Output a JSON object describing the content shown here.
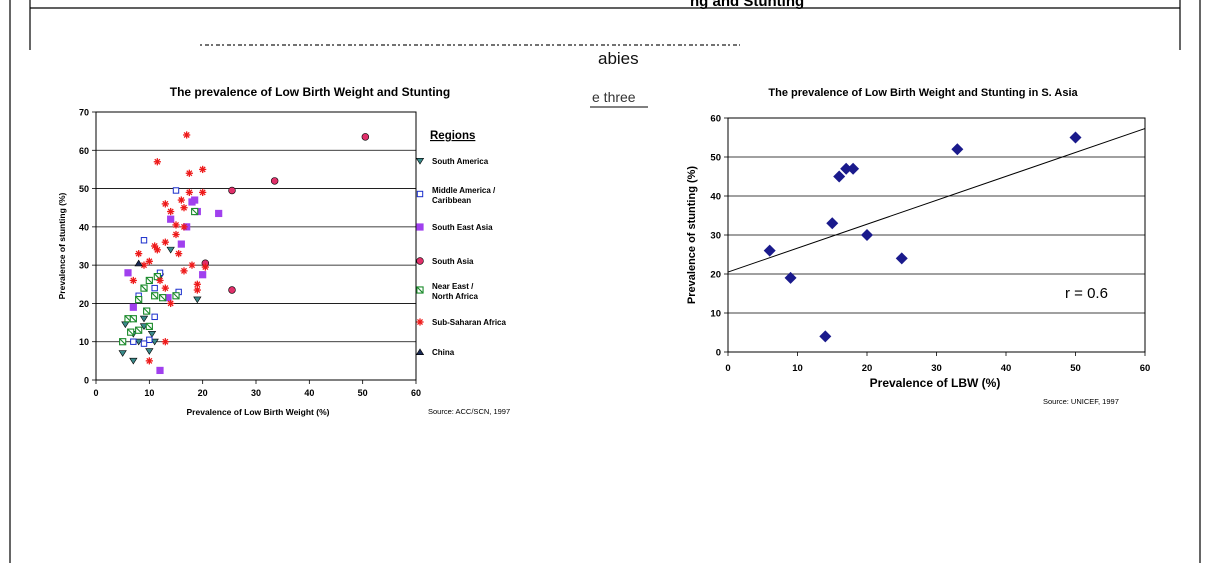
{
  "slide": {
    "header_fragment": "ng  and Stunting",
    "bullet_fragment": "abies",
    "bullet_fragment_2": "e three"
  },
  "left_chart": {
    "chart_data": {
      "type": "scatter",
      "title": "The prevalence of Low Birth Weight and Stunting",
      "xlabel": "Prevalence of Low Birth Weight (%)",
      "ylabel": "Prevalence of stunting (%)",
      "xlim": [
        0,
        60
      ],
      "ylim": [
        0,
        70
      ],
      "xticks": [
        0,
        10,
        20,
        30,
        40,
        50,
        60
      ],
      "yticks": [
        0,
        10,
        20,
        30,
        40,
        50,
        60,
        70
      ],
      "grid": "horizontal",
      "legend_title": "Regions",
      "legend_position": "right",
      "source": "Source: ACC/SCN, 1997",
      "series": [
        {
          "name": "South America",
          "marker": "triangle-down",
          "color": "#3a8a8a",
          "points": [
            [
              5.5,
              14.5
            ],
            [
              5,
              7
            ],
            [
              7,
              5
            ],
            [
              8,
              10
            ],
            [
              9,
              14
            ],
            [
              10,
              7.5
            ],
            [
              10.5,
              12
            ],
            [
              11,
              10
            ],
            [
              12,
              27
            ],
            [
              14,
              34
            ],
            [
              19,
              21
            ],
            [
              9,
              16
            ],
            [
              7,
              12
            ]
          ]
        },
        {
          "name": "Middle America / Caribbean",
          "marker": "square-open",
          "color": "#1a2ecc",
          "points": [
            [
              9,
              36.5
            ],
            [
              15,
              49.5
            ],
            [
              15.5,
              23
            ],
            [
              11,
              16.5
            ],
            [
              8,
              22
            ],
            [
              10,
              10.5
            ],
            [
              7,
              10
            ],
            [
              9,
              9.5
            ],
            [
              11,
              24
            ],
            [
              12,
              28
            ]
          ]
        },
        {
          "name": "South East Asia",
          "marker": "square",
          "color": "#a040ee",
          "points": [
            [
              6,
              28
            ],
            [
              7,
              19
            ],
            [
              12,
              2.5
            ],
            [
              14,
              42
            ],
            [
              16,
              35.5
            ],
            [
              17,
              40
            ],
            [
              18,
              46.5
            ],
            [
              18.5,
              47
            ],
            [
              19,
              44
            ],
            [
              20,
              27.5
            ],
            [
              23,
              43.5
            ],
            [
              13.5,
              21.5
            ]
          ]
        },
        {
          "name": "South Asia",
          "marker": "circle",
          "color": "#e0306a",
          "points": [
            [
              20.5,
              30.5
            ],
            [
              25.5,
              49.5
            ],
            [
              25.5,
              23.5
            ],
            [
              33.5,
              52
            ],
            [
              50.5,
              63.5
            ]
          ]
        },
        {
          "name": "Near East / North Africa",
          "marker": "square-hatched",
          "color": "#1a8a2a",
          "points": [
            [
              5,
              10
            ],
            [
              6,
              16
            ],
            [
              7,
              16
            ],
            [
              8,
              21
            ],
            [
              9,
              24
            ],
            [
              10,
              26
            ],
            [
              11,
              22
            ],
            [
              11.5,
              27
            ],
            [
              9.5,
              18
            ],
            [
              8,
              13
            ],
            [
              15,
              22
            ],
            [
              18.5,
              44
            ],
            [
              6.5,
              12.5
            ],
            [
              10,
              14
            ],
            [
              12.5,
              21.5
            ]
          ]
        },
        {
          "name": "Sub-Saharan Africa",
          "marker": "asterisk",
          "color": "#ee1a1a",
          "points": [
            [
              7,
              26
            ],
            [
              8,
              33
            ],
            [
              9,
              30
            ],
            [
              10,
              31
            ],
            [
              11,
              35
            ],
            [
              11.5,
              34
            ],
            [
              12,
              26
            ],
            [
              13,
              36
            ],
            [
              13,
              46
            ],
            [
              14,
              44
            ],
            [
              15,
              38
            ],
            [
              15.5,
              33
            ],
            [
              16,
              47
            ],
            [
              16.5,
              40
            ],
            [
              16.5,
              45
            ],
            [
              17,
              64
            ],
            [
              17.5,
              54
            ],
            [
              17.5,
              49
            ],
            [
              18,
              30
            ],
            [
              16.5,
              28.5
            ],
            [
              20,
              55
            ],
            [
              20,
              49
            ],
            [
              20.5,
              29.5
            ],
            [
              19,
              23.5
            ],
            [
              19,
              25
            ],
            [
              11.5,
              57
            ],
            [
              10,
              5
            ],
            [
              13,
              10
            ],
            [
              14,
              20
            ],
            [
              15,
              40.5
            ],
            [
              13,
              24
            ]
          ]
        },
        {
          "name": "China",
          "marker": "triangle-up",
          "color": "#1a2a55",
          "points": [
            [
              8,
              30.5
            ]
          ]
        }
      ]
    }
  },
  "right_chart": {
    "chart_data": {
      "type": "scatter",
      "title": "The prevalence of Low Birth Weight and Stunting in S. Asia",
      "xlabel": "Prevalence of LBW (%)",
      "ylabel": "Prevalence of stunting (%)",
      "xlim": [
        0,
        60
      ],
      "ylim": [
        0,
        60
      ],
      "xticks": [
        0,
        10,
        20,
        30,
        40,
        50,
        60
      ],
      "yticks": [
        0,
        10,
        20,
        30,
        40,
        50,
        60
      ],
      "grid": "horizontal",
      "annotation": "r = 0.6",
      "source": "Source: UNICEF, 1997",
      "marker_color": "#1a1a8c",
      "trendline": {
        "x": [
          0,
          60
        ],
        "y": [
          20.5,
          57.3
        ]
      },
      "points": [
        [
          6,
          26
        ],
        [
          9,
          19
        ],
        [
          14,
          4
        ],
        [
          15,
          33
        ],
        [
          16,
          45
        ],
        [
          17,
          47
        ],
        [
          18,
          47
        ],
        [
          20,
          30
        ],
        [
          25,
          24
        ],
        [
          33,
          52
        ],
        [
          50,
          55
        ]
      ]
    }
  }
}
